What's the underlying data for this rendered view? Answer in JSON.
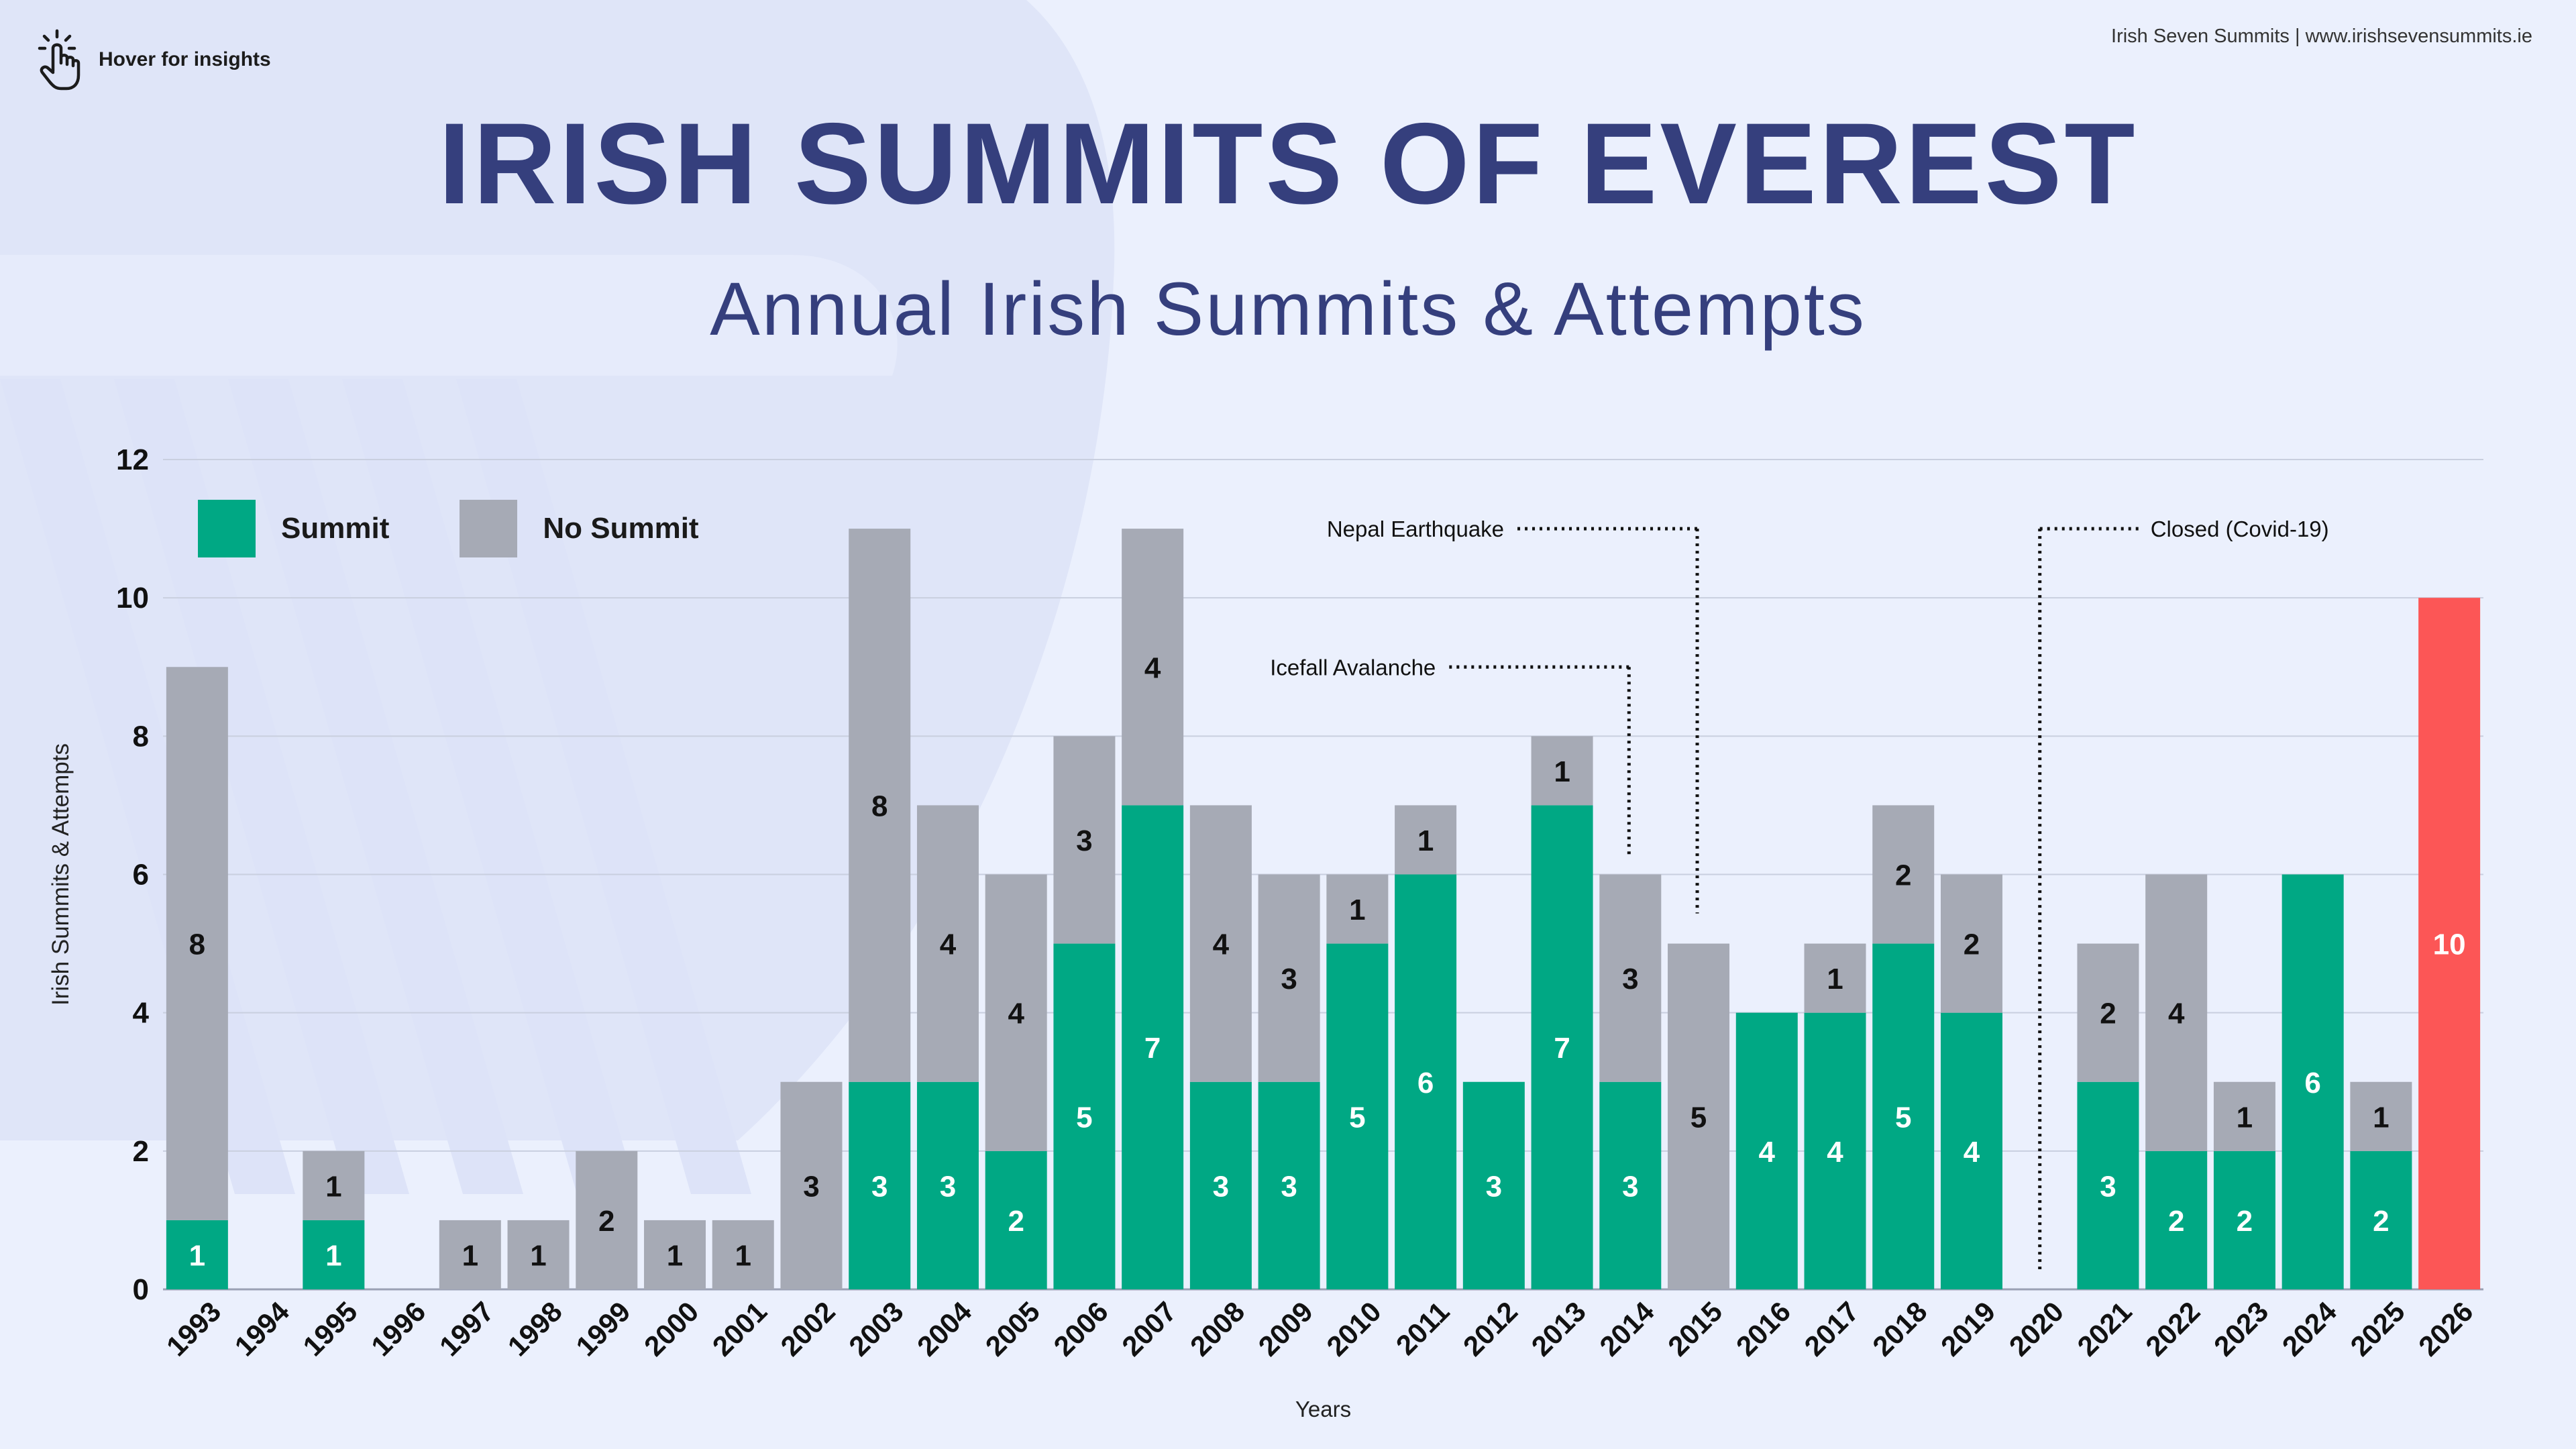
{
  "header": {
    "hover_hint": "Hover for insights",
    "credit": "Irish Seven Summits | www.irishsevensummits.ie",
    "title": "IRISH SUMMITS OF EVEREST",
    "subtitle": "Annual Irish Summits & Attempts"
  },
  "legend": {
    "summit": "Summit",
    "no_summit": "No Summit"
  },
  "colors": {
    "summit": "#00a884",
    "no_summit": "#a6aab5",
    "highlight": "#fc5656",
    "title": "#353f7d",
    "gridline": "#c9cfdf"
  },
  "chart_data": {
    "type": "bar",
    "stacked": true,
    "title": "IRISH SUMMITS OF EVEREST",
    "subtitle": "Annual Irish Summits & Attempts",
    "xlabel": "Years",
    "ylabel": "Irish Summits & Attempts",
    "ylim": [
      0,
      12
    ],
    "yticks": [
      0,
      2,
      4,
      6,
      8,
      10,
      12
    ],
    "grid": true,
    "legend_position": "top-left",
    "categories": [
      "1993",
      "1994",
      "1995",
      "1996",
      "1997",
      "1998",
      "1999",
      "2000",
      "2001",
      "2002",
      "2003",
      "2004",
      "2005",
      "2006",
      "2007",
      "2008",
      "2009",
      "2010",
      "2011",
      "2012",
      "2013",
      "2014",
      "2015",
      "2016",
      "2017",
      "2018",
      "2019",
      "2020",
      "2021",
      "2022",
      "2023",
      "2024",
      "2025",
      "2026"
    ],
    "series": [
      {
        "name": "Summit",
        "values": [
          1,
          0,
          1,
          0,
          0,
          0,
          0,
          0,
          0,
          0,
          3,
          3,
          2,
          5,
          7,
          3,
          3,
          5,
          6,
          3,
          7,
          3,
          0,
          4,
          4,
          5,
          4,
          0,
          3,
          2,
          2,
          6,
          2,
          0
        ]
      },
      {
        "name": "No Summit",
        "values": [
          8,
          0,
          1,
          0,
          1,
          1,
          2,
          1,
          1,
          3,
          8,
          4,
          4,
          3,
          4,
          4,
          3,
          1,
          1,
          0,
          1,
          3,
          5,
          0,
          1,
          2,
          2,
          0,
          2,
          4,
          1,
          0,
          1,
          0
        ]
      },
      {
        "name": "2026",
        "values": [
          0,
          0,
          0,
          0,
          0,
          0,
          0,
          0,
          0,
          0,
          0,
          0,
          0,
          0,
          0,
          0,
          0,
          0,
          0,
          0,
          0,
          0,
          0,
          0,
          0,
          0,
          0,
          0,
          0,
          0,
          0,
          0,
          0,
          10
        ]
      }
    ],
    "annotations": [
      {
        "label": "Nepal Earthquake",
        "year": "2015",
        "level": 11
      },
      {
        "label": "Icefall Avalanche",
        "year": "2014",
        "level": 9
      },
      {
        "label": "Closed (Covid-19)",
        "year": "2020",
        "level": 11
      }
    ]
  }
}
